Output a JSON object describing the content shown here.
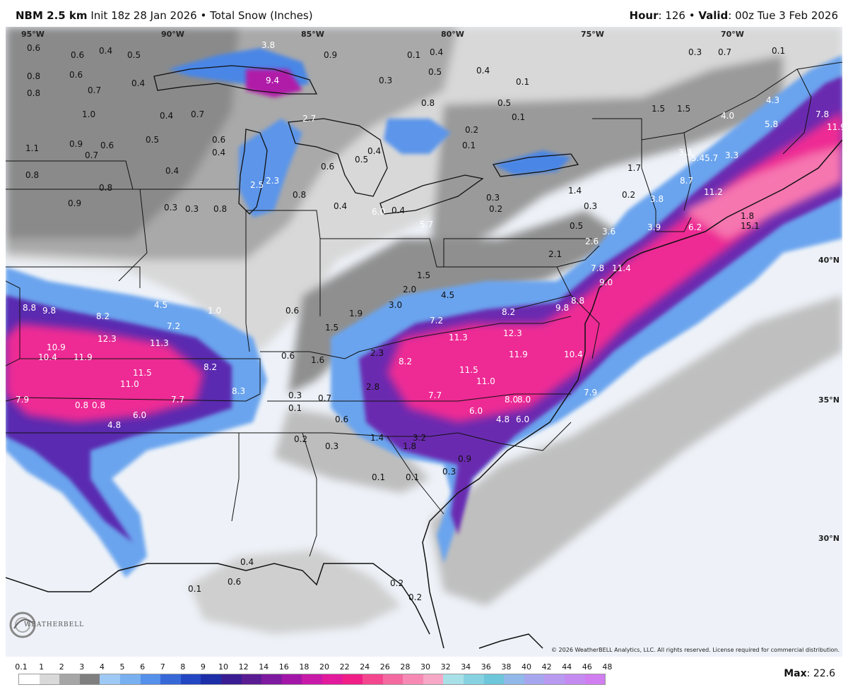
{
  "header": {
    "model": "NBM 2.5 km",
    "init": " Init 18z 28 Jan 2026 • Total Snow (Inches)",
    "hour_label": "Hour",
    "hour_rest": ": 126 • ",
    "valid_label": "Valid",
    "valid_rest": ": 00z Tue 3 Feb 2026"
  },
  "coords": {
    "lon": [
      "95°W",
      "90°W",
      "85°W",
      "80°W",
      "75°W",
      "70°W"
    ],
    "lat": [
      "40°N",
      "35°N",
      "30°N"
    ]
  },
  "labels": {
    "w": [
      "0.6",
      "0.6",
      "0.4",
      "0.5",
      "3.8",
      "0.9",
      "0.1",
      "0.4",
      "0.8",
      "0.6",
      "0.8",
      "0.7",
      "0.4",
      "9.4",
      "0.3",
      "0.5",
      "0.4",
      "0.1",
      "0.3",
      "0.7",
      "0.1",
      "1.0",
      "0.4",
      "0.7",
      "2.7",
      "0.8",
      "0.5",
      "0.1",
      "1.5",
      "1.5",
      "4.0",
      "5.8",
      "7.8",
      "11.9",
      "4.3",
      "1.1",
      "0.9",
      "0.7",
      "0.6",
      "0.5",
      "0.6",
      "3.3",
      "0.5",
      "0.4",
      "0.1",
      "0.2",
      "0.4",
      "0.6",
      "0.4",
      "2.3",
      "2.5",
      "0.8",
      "0.8",
      "0.9",
      "0.3",
      "0.8",
      "0.4",
      "0.4",
      "0.3",
      "0.2",
      "0.3",
      "0.2",
      "3.8",
      "3.9",
      "6.2",
      "11.2",
      "8.7",
      "5.45.7",
      "3.3",
      "6.0",
      "5.7",
      "0.3",
      "0.5",
      "0.4",
      "0.1"
    ],
    "e": [
      "8.8",
      "9.8",
      "8.2",
      "12.3",
      "7.2",
      "11.3",
      "4.5",
      "1.0",
      "11.9",
      "10.9",
      "10.4",
      "11.5",
      "11.0",
      "8.2",
      "7.7",
      "7.9",
      "0.8",
      "0.8",
      "6.0",
      "4.8",
      "8.3",
      "2.6",
      "3.6",
      "7.8",
      "11.4",
      "9.0",
      "9.8",
      "8.8",
      "8.2",
      "7.2",
      "12.3",
      "11.3",
      "11.9",
      "10.4",
      "11.5",
      "11.0",
      "8.2",
      "7.7",
      "8.0",
      "8.0",
      "6.0",
      "4.8",
      "6.0",
      "7.9",
      "1.5",
      "1.9",
      "3.0",
      "2.0",
      "1.5",
      "4.5",
      "0.6",
      "1.6",
      "2.3",
      "2.8",
      "0.3",
      "0.7",
      "0.1",
      "0.6",
      "1.4",
      "3.2",
      "1.8",
      "0.2",
      "0.3",
      "0.1",
      "0.1",
      "0.9",
      "0.3",
      "0.4",
      "0.6",
      "0.1",
      "0.2",
      "0.2",
      "1.4",
      "2.1",
      "0.6",
      "0.8",
      "1.7",
      "1.8",
      "15.1"
    ]
  },
  "copyright": "© 2026 WeatherBELL Analytics, LLC. All rights reserved. License required for commercial distribution.",
  "logo_text": "WEATHERBELL",
  "legend": {
    "ticks": [
      "0.1",
      "1",
      "2",
      "3",
      "4",
      "5",
      "6",
      "7",
      "8",
      "9",
      "10",
      "12",
      "14",
      "16",
      "18",
      "20",
      "22",
      "24",
      "26",
      "28",
      "30",
      "32",
      "34",
      "36",
      "38",
      "40",
      "42",
      "44",
      "46",
      "48"
    ],
    "colors": [
      "#ffffff",
      "#d9d9d9",
      "#a6a6a6",
      "#7f7f7f",
      "#9ec9f4",
      "#78b0f0",
      "#5590ea",
      "#3768d8",
      "#2347c2",
      "#1c2ea8",
      "#3a1d92",
      "#5a1c92",
      "#7d1aa0",
      "#a217a8",
      "#c81aa8",
      "#e21a9c",
      "#f01e86",
      "#f4468e",
      "#f46aa0",
      "#f68ab4",
      "#f6a8c6",
      "#a8e0e8",
      "#86d2e0",
      "#6ec6da",
      "#90b8e8",
      "#a6a6ee",
      "#b89af0",
      "#c48cf0",
      "#d07ef0"
    ],
    "max_label": "Max",
    "max_value": ": 22.6"
  }
}
